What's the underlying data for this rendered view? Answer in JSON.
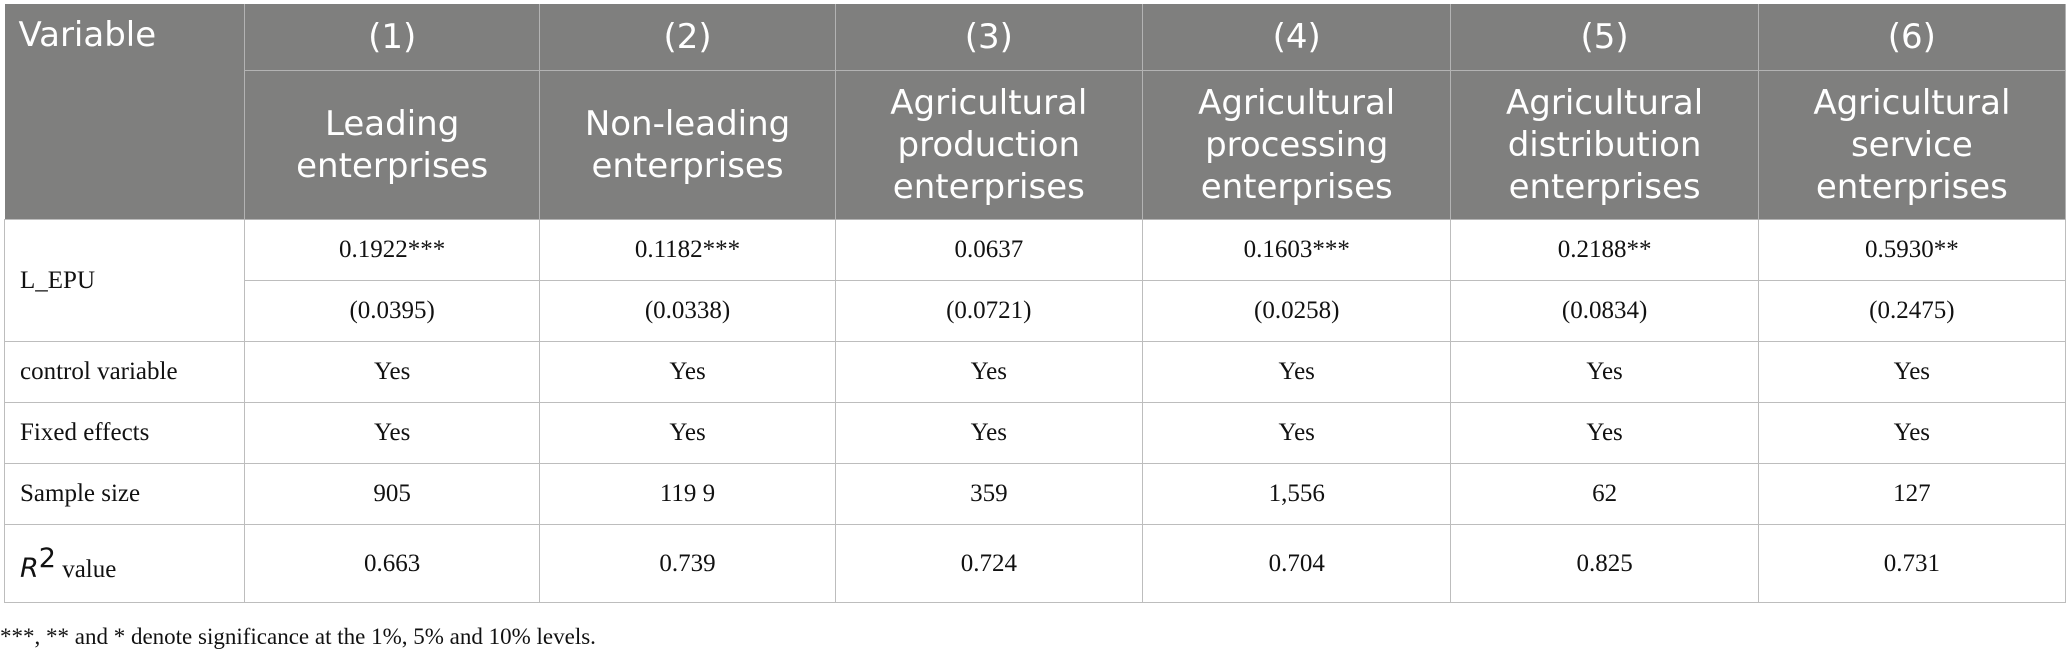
{
  "table": {
    "variable_header": "Variable",
    "columns": [
      {
        "number": "(1)",
        "name": "Leading enterprises"
      },
      {
        "number": "(2)",
        "name": "Non-leading enterprises"
      },
      {
        "number": "(3)",
        "name": "Agricultural production enterprises"
      },
      {
        "number": "(4)",
        "name": "Agricultural processing enterprises"
      },
      {
        "number": "(5)",
        "name": "Agricultural distribution enterprises"
      },
      {
        "number": "(6)",
        "name": "Agricultural service enterprises"
      }
    ],
    "rows": {
      "l_epu": {
        "label": "L_EPU",
        "coefficients": [
          "0.1922***",
          "0.1182***",
          "0.0637",
          "0.1603***",
          "0.2188**",
          "0.5930**"
        ],
        "std_errors": [
          "(0.0395)",
          "(0.0338)",
          "(0.0721)",
          "(0.0258)",
          "(0.0834)",
          "(0.2475)"
        ]
      },
      "control": {
        "label": "control variable",
        "values": [
          "Yes",
          "Yes",
          "Yes",
          "Yes",
          "Yes",
          "Yes"
        ]
      },
      "fixed_effects": {
        "label": "Fixed effects",
        "values": [
          "Yes",
          "Yes",
          "Yes",
          "Yes",
          "Yes",
          "Yes"
        ]
      },
      "sample_size": {
        "label": "Sample size",
        "values": [
          "905",
          "119 9",
          "359",
          "1,556",
          "62",
          "127"
        ]
      },
      "r2": {
        "label_symbol": "R",
        "label_superscript": "2",
        "label_suffix": " value",
        "values": [
          "0.663",
          "0.739",
          "0.724",
          "0.704",
          "0.825",
          "0.731"
        ]
      }
    },
    "note": "***, ** and * denote significance at the 1%, 5% and 10% levels."
  },
  "colors": {
    "header_background": "#7f7f7e",
    "header_text": "#ffffff",
    "grid_line": "#bdbdbd"
  }
}
